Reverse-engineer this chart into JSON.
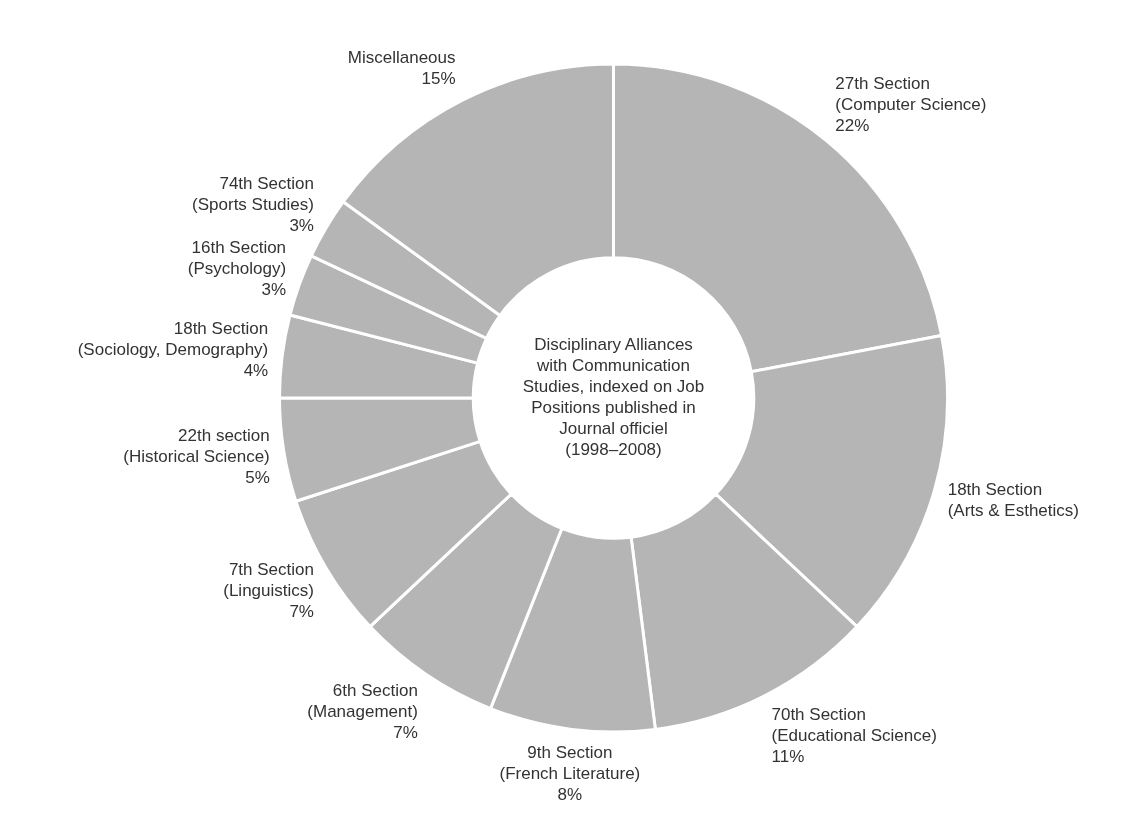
{
  "chart_data": {
    "type": "donut",
    "title": "Disciplinary Alliances\nwith Communication\nStudies, indexed on Job\nPositions published in\nJournal officiel\n(1998–2008)",
    "categories": [
      "27th Section\n(Computer Science)",
      "18th Section\n(Arts & Esthetics)",
      "70th Section\n(Educational Science)",
      "9th Section\n(French Literature)",
      "6th Section\n(Management)",
      "7th Section\n(Linguistics)",
      "22th section\n(Historical Science)",
      "18th Section\n(Sociology, Demography)",
      "16th Section\n(Psychology)",
      "74th Section\n(Sports Studies)",
      "Miscellaneous"
    ],
    "values": [
      22,
      15,
      11,
      8,
      7,
      7,
      5,
      4,
      3,
      3,
      15
    ],
    "value_labels": [
      "22%",
      null,
      "11%",
      "8%",
      "7%",
      "7%",
      "5%",
      "4%",
      "3%",
      "3%",
      "15%"
    ],
    "colors": [
      "#b5b5b5",
      "#b5b5b5",
      "#b5b5b5",
      "#b5b5b5",
      "#b5b5b5",
      "#b5b5b5",
      "#b5b5b5",
      "#b5b5b5",
      "#b5b5b5",
      "#b5b5b5",
      "#b5b5b5"
    ],
    "legend": false
  }
}
